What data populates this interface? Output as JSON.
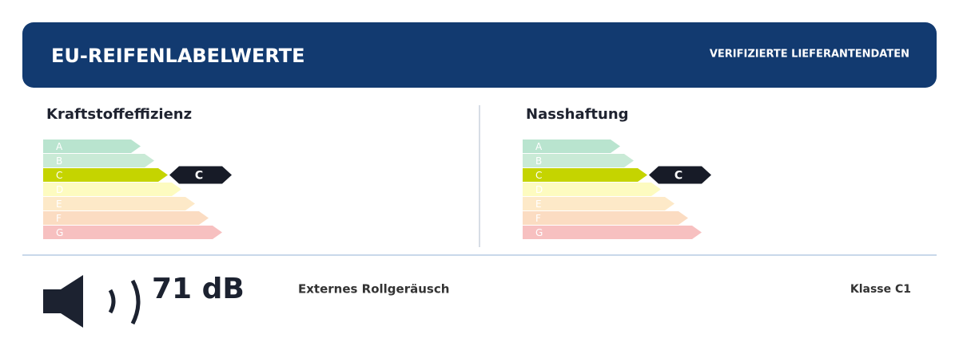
{
  "header": {
    "title": "EU-REIFENLABELWERTE",
    "subtitle": "VERIFIZIERTE LIEFERANTENDATEN"
  },
  "panels": [
    {
      "title": "Kraftstoffeffizienz",
      "classes": [
        "A",
        "B",
        "C",
        "D",
        "E",
        "F",
        "G"
      ],
      "selected": "C"
    },
    {
      "title": "Nasshaftung",
      "classes": [
        "A",
        "B",
        "C",
        "D",
        "E",
        "F",
        "G"
      ],
      "selected": "C"
    }
  ],
  "noise": {
    "value": "71 dB",
    "label": "Externes Rollgeräusch",
    "class": "Klasse C1"
  }
}
